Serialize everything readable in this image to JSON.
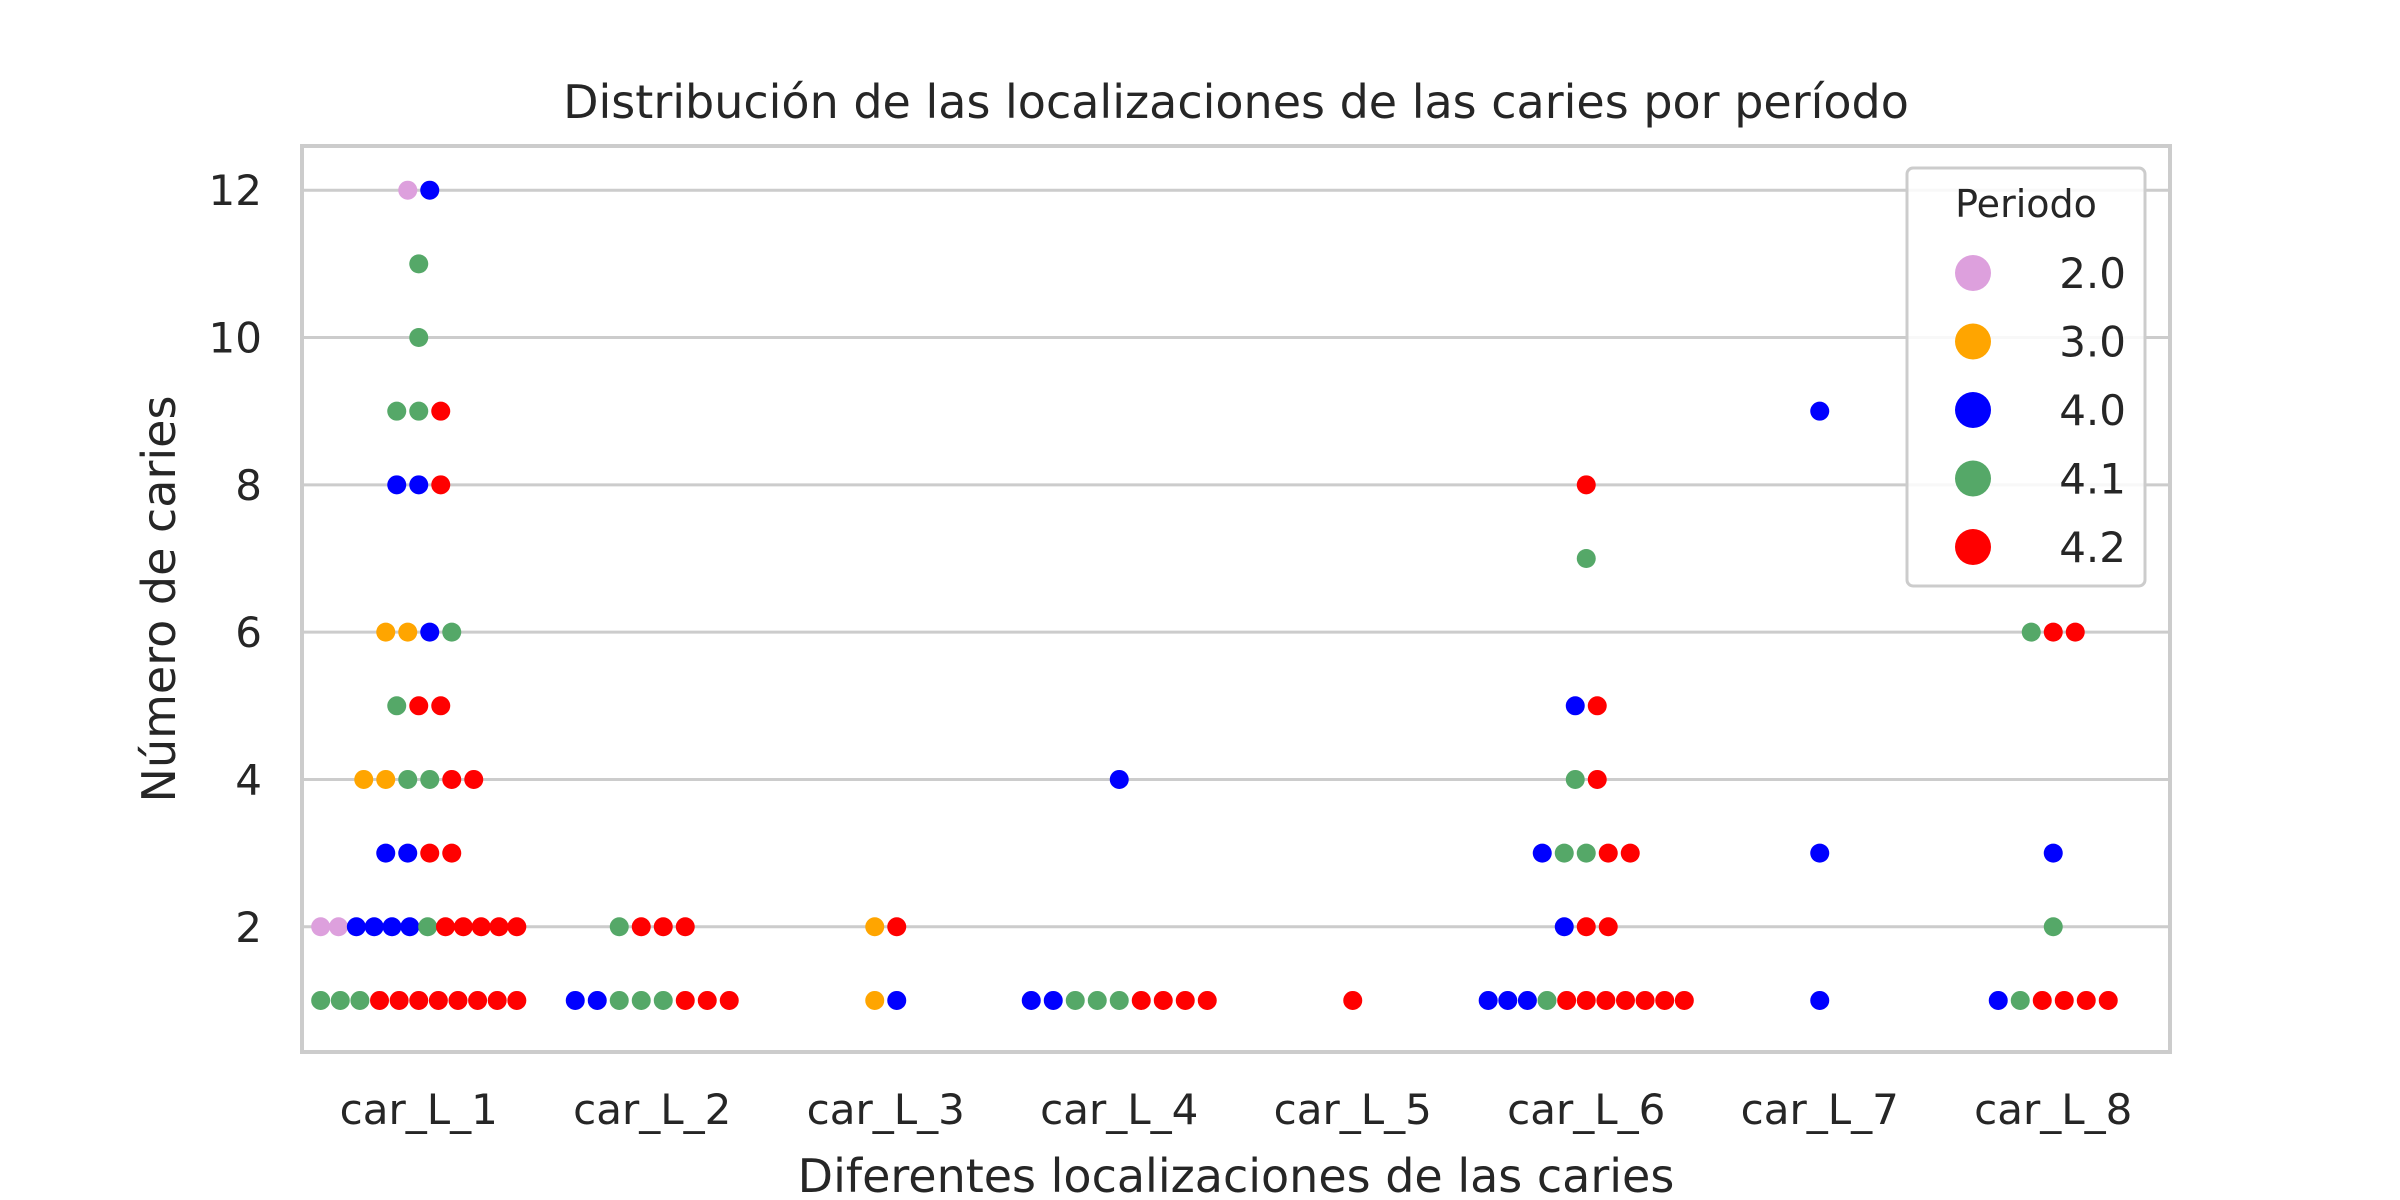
{
  "chart_data": {
    "type": "scatter",
    "subtype": "swarm",
    "title": "Distribución de las localizaciones de las caries por período",
    "xlabel": "Diferentes localizaciones de las caries",
    "ylabel": "Número de caries",
    "categories": [
      "car_L_1",
      "car_L_2",
      "car_L_3",
      "car_L_4",
      "car_L_5",
      "car_L_6",
      "car_L_7",
      "car_L_8"
    ],
    "yticks": [
      2,
      4,
      6,
      8,
      10,
      12
    ],
    "ylim": [
      0.3,
      12.6
    ],
    "grid": true,
    "legend": {
      "title": "Periodo",
      "position": "top-right",
      "entries": [
        {
          "label": "2.0",
          "color": "#dda0dd"
        },
        {
          "label": "3.0",
          "color": "#ffa500"
        },
        {
          "label": "4.0",
          "color": "#0000ff"
        },
        {
          "label": "4.1",
          "color": "#55a868"
        },
        {
          "label": "4.2",
          "color": "#ff0000"
        }
      ]
    },
    "series": [
      {
        "name": "2.0",
        "color": "#dda0dd",
        "points": [
          {
            "x": "car_L_1",
            "y": 12
          },
          {
            "x": "car_L_1",
            "y": 2
          },
          {
            "x": "car_L_1",
            "y": 2
          }
        ]
      },
      {
        "name": "3.0",
        "color": "#ffa500",
        "points": [
          {
            "x": "car_L_1",
            "y": 6
          },
          {
            "x": "car_L_1",
            "y": 6
          },
          {
            "x": "car_L_1",
            "y": 4
          },
          {
            "x": "car_L_1",
            "y": 4
          },
          {
            "x": "car_L_3",
            "y": 2
          },
          {
            "x": "car_L_3",
            "y": 1
          }
        ]
      },
      {
        "name": "4.0",
        "color": "#0000ff",
        "points": [
          {
            "x": "car_L_1",
            "y": 12
          },
          {
            "x": "car_L_1",
            "y": 8
          },
          {
            "x": "car_L_1",
            "y": 8
          },
          {
            "x": "car_L_1",
            "y": 6
          },
          {
            "x": "car_L_1",
            "y": 3
          },
          {
            "x": "car_L_1",
            "y": 3
          },
          {
            "x": "car_L_1",
            "y": 2
          },
          {
            "x": "car_L_1",
            "y": 2
          },
          {
            "x": "car_L_1",
            "y": 2
          },
          {
            "x": "car_L_1",
            "y": 2
          },
          {
            "x": "car_L_2",
            "y": 1
          },
          {
            "x": "car_L_2",
            "y": 1
          },
          {
            "x": "car_L_3",
            "y": 1
          },
          {
            "x": "car_L_4",
            "y": 4
          },
          {
            "x": "car_L_4",
            "y": 1
          },
          {
            "x": "car_L_4",
            "y": 1
          },
          {
            "x": "car_L_6",
            "y": 5
          },
          {
            "x": "car_L_6",
            "y": 3
          },
          {
            "x": "car_L_6",
            "y": 2
          },
          {
            "x": "car_L_6",
            "y": 1
          },
          {
            "x": "car_L_6",
            "y": 1
          },
          {
            "x": "car_L_6",
            "y": 1
          },
          {
            "x": "car_L_7",
            "y": 9
          },
          {
            "x": "car_L_7",
            "y": 3
          },
          {
            "x": "car_L_7",
            "y": 1
          },
          {
            "x": "car_L_8",
            "y": 3
          },
          {
            "x": "car_L_8",
            "y": 1
          }
        ]
      },
      {
        "name": "4.1",
        "color": "#55a868",
        "points": [
          {
            "x": "car_L_1",
            "y": 11
          },
          {
            "x": "car_L_1",
            "y": 10
          },
          {
            "x": "car_L_1",
            "y": 9
          },
          {
            "x": "car_L_1",
            "y": 9
          },
          {
            "x": "car_L_1",
            "y": 6
          },
          {
            "x": "car_L_1",
            "y": 5
          },
          {
            "x": "car_L_1",
            "y": 4
          },
          {
            "x": "car_L_1",
            "y": 4
          },
          {
            "x": "car_L_1",
            "y": 2
          },
          {
            "x": "car_L_1",
            "y": 1
          },
          {
            "x": "car_L_1",
            "y": 1
          },
          {
            "x": "car_L_1",
            "y": 1
          },
          {
            "x": "car_L_2",
            "y": 2
          },
          {
            "x": "car_L_2",
            "y": 1
          },
          {
            "x": "car_L_2",
            "y": 1
          },
          {
            "x": "car_L_2",
            "y": 1
          },
          {
            "x": "car_L_4",
            "y": 1
          },
          {
            "x": "car_L_4",
            "y": 1
          },
          {
            "x": "car_L_4",
            "y": 1
          },
          {
            "x": "car_L_6",
            "y": 7
          },
          {
            "x": "car_L_6",
            "y": 4
          },
          {
            "x": "car_L_6",
            "y": 3
          },
          {
            "x": "car_L_6",
            "y": 3
          },
          {
            "x": "car_L_6",
            "y": 1
          },
          {
            "x": "car_L_8",
            "y": 6
          },
          {
            "x": "car_L_8",
            "y": 2
          },
          {
            "x": "car_L_8",
            "y": 1
          }
        ]
      },
      {
        "name": "4.2",
        "color": "#ff0000",
        "points": [
          {
            "x": "car_L_1",
            "y": 9
          },
          {
            "x": "car_L_1",
            "y": 8
          },
          {
            "x": "car_L_1",
            "y": 5
          },
          {
            "x": "car_L_1",
            "y": 5
          },
          {
            "x": "car_L_1",
            "y": 4
          },
          {
            "x": "car_L_1",
            "y": 4
          },
          {
            "x": "car_L_1",
            "y": 3
          },
          {
            "x": "car_L_1",
            "y": 3
          },
          {
            "x": "car_L_1",
            "y": 2
          },
          {
            "x": "car_L_1",
            "y": 2
          },
          {
            "x": "car_L_1",
            "y": 2
          },
          {
            "x": "car_L_1",
            "y": 2
          },
          {
            "x": "car_L_1",
            "y": 2
          },
          {
            "x": "car_L_1",
            "y": 1
          },
          {
            "x": "car_L_1",
            "y": 1
          },
          {
            "x": "car_L_1",
            "y": 1
          },
          {
            "x": "car_L_1",
            "y": 1
          },
          {
            "x": "car_L_1",
            "y": 1
          },
          {
            "x": "car_L_1",
            "y": 1
          },
          {
            "x": "car_L_1",
            "y": 1
          },
          {
            "x": "car_L_1",
            "y": 1
          },
          {
            "x": "car_L_2",
            "y": 2
          },
          {
            "x": "car_L_2",
            "y": 2
          },
          {
            "x": "car_L_2",
            "y": 2
          },
          {
            "x": "car_L_2",
            "y": 1
          },
          {
            "x": "car_L_2",
            "y": 1
          },
          {
            "x": "car_L_2",
            "y": 1
          },
          {
            "x": "car_L_3",
            "y": 2
          },
          {
            "x": "car_L_4",
            "y": 1
          },
          {
            "x": "car_L_4",
            "y": 1
          },
          {
            "x": "car_L_4",
            "y": 1
          },
          {
            "x": "car_L_4",
            "y": 1
          },
          {
            "x": "car_L_5",
            "y": 1
          },
          {
            "x": "car_L_6",
            "y": 8
          },
          {
            "x": "car_L_6",
            "y": 5
          },
          {
            "x": "car_L_6",
            "y": 4
          },
          {
            "x": "car_L_6",
            "y": 3
          },
          {
            "x": "car_L_6",
            "y": 3
          },
          {
            "x": "car_L_6",
            "y": 2
          },
          {
            "x": "car_L_6",
            "y": 2
          },
          {
            "x": "car_L_6",
            "y": 1
          },
          {
            "x": "car_L_6",
            "y": 1
          },
          {
            "x": "car_L_6",
            "y": 1
          },
          {
            "x": "car_L_6",
            "y": 1
          },
          {
            "x": "car_L_6",
            "y": 1
          },
          {
            "x": "car_L_6",
            "y": 1
          },
          {
            "x": "car_L_6",
            "y": 1
          },
          {
            "x": "car_L_8",
            "y": 6
          },
          {
            "x": "car_L_8",
            "y": 6
          },
          {
            "x": "car_L_8",
            "y": 1
          },
          {
            "x": "car_L_8",
            "y": 1
          },
          {
            "x": "car_L_8",
            "y": 1
          },
          {
            "x": "car_L_8",
            "y": 1
          }
        ]
      }
    ]
  }
}
